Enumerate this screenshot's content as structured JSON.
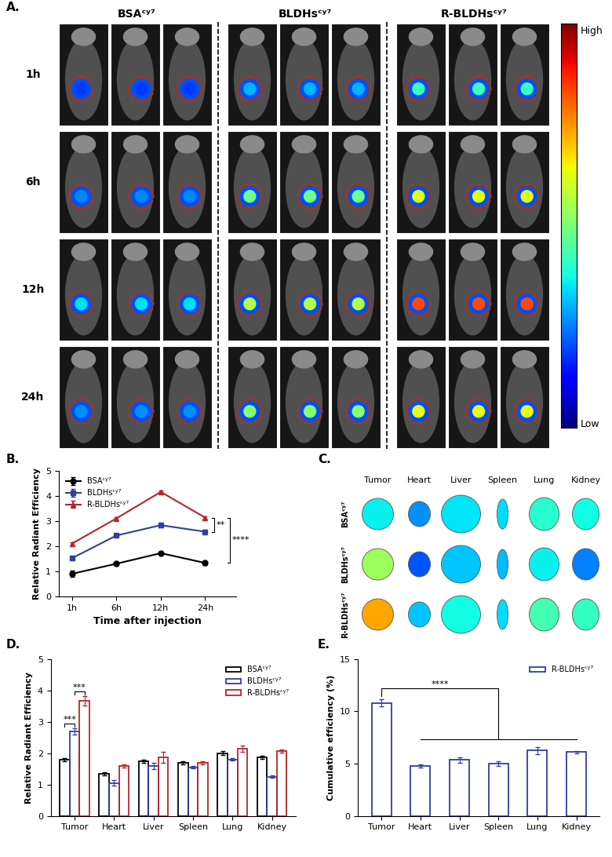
{
  "imaging": {
    "title": "A.",
    "groups": [
      "BSAᶜʸ⁷",
      "BLDHsᶜʸ⁷",
      "R-BLDHsᶜʸ⁷"
    ],
    "times": [
      "1h",
      "6h",
      "12h",
      "24h"
    ],
    "mice_per_group": 3,
    "colorbar": {
      "high": "High",
      "low": "Low"
    }
  },
  "ex_vivo": {
    "title": "C.",
    "groups": [
      "BSAᶜʸ⁷",
      "BLDHsᶜʸ⁷",
      "R-BLDHsᶜʸ⁷"
    ],
    "organs": [
      "Tumor",
      "Heart",
      "Liver",
      "Spleen",
      "Lung",
      "Kidney"
    ]
  },
  "chart_data": [
    {
      "type": "line",
      "title": "B.",
      "x_label": "Time after injection",
      "y_label": "Relative Radiant Efficiency",
      "categories": [
        "1h",
        "6h",
        "12h",
        "24h"
      ],
      "series": [
        {
          "name": "BSAᶜʸ⁷",
          "color": "#000000",
          "marker": "circle",
          "values": [
            0.9,
            1.3,
            1.72,
            1.33
          ],
          "errors": [
            0.12,
            0.05,
            0.05,
            0.08
          ]
        },
        {
          "name": "BLDHsᶜʸ⁷",
          "color": "#2e3f9e",
          "marker": "square",
          "values": [
            1.52,
            2.42,
            2.83,
            2.57
          ],
          "errors": [
            0.05,
            0.05,
            0.1,
            0.08
          ]
        },
        {
          "name": "R-BLDHsᶜʸ⁷",
          "color": "#b5262b",
          "marker": "triangle",
          "values": [
            2.1,
            3.1,
            4.15,
            3.13
          ],
          "errors": [
            0.06,
            0.05,
            0.07,
            0.05
          ]
        }
      ],
      "ylim": [
        0,
        5
      ],
      "yticks": [
        0,
        1,
        2,
        3,
        4,
        5
      ],
      "legend": "upper left",
      "annotations": [
        {
          "text": "**",
          "at": "24h",
          "between": [
            "BLDHsᶜʸ⁷",
            "R-BLDHsᶜʸ⁷"
          ]
        },
        {
          "text": "****",
          "at": "24h",
          "between": [
            "BSAᶜʸ⁷",
            "R-BLDHsᶜʸ⁷"
          ]
        }
      ]
    },
    {
      "type": "bar",
      "title": "D.",
      "y_label": "Relative Radiant Efficiency",
      "categories": [
        "Tumor",
        "Heart",
        "Liver",
        "Spleen",
        "Lung",
        "Kidney"
      ],
      "series": [
        {
          "name": "BSAᶜʸ⁷",
          "color": "#000000",
          "values": [
            1.8,
            1.33,
            1.75,
            1.7,
            2.0,
            1.87
          ],
          "errors": [
            0.05,
            0.05,
            0.05,
            0.05,
            0.07,
            0.05
          ]
        },
        {
          "name": "BLDHsᶜʸ⁷",
          "color": "#2e3f9e",
          "values": [
            2.7,
            1.05,
            1.6,
            1.55,
            1.8,
            1.25
          ],
          "errors": [
            0.1,
            0.08,
            0.1,
            0.03,
            0.03,
            0.03
          ]
        },
        {
          "name": "R-BLDHsᶜʸ⁷",
          "color": "#b5262b",
          "values": [
            3.67,
            1.6,
            1.87,
            1.7,
            2.15,
            2.07
          ],
          "errors": [
            0.15,
            0.05,
            0.18,
            0.05,
            0.1,
            0.05
          ]
        }
      ],
      "ylim": [
        0,
        5
      ],
      "yticks": [
        0,
        1,
        2,
        3,
        4,
        5
      ],
      "legend": "upper right",
      "annotations": [
        {
          "text": "***",
          "at": "Tumor",
          "between": [
            "BSAᶜʸ⁷",
            "BLDHsᶜʸ⁷"
          ]
        },
        {
          "text": "***",
          "at": "Tumor",
          "between": [
            "BLDHsᶜʸ⁷",
            "R-BLDHsᶜʸ⁷"
          ]
        }
      ]
    },
    {
      "type": "bar",
      "title": "E.",
      "y_label": "Cumulative efficiency (%)",
      "categories": [
        "Tumor",
        "Heart",
        "Liver",
        "Spleen",
        "Lung",
        "Kidney"
      ],
      "series": [
        {
          "name": "R-BLDHsᶜʸ⁷",
          "color": "#2e3f9e",
          "values": [
            10.8,
            4.75,
            5.35,
            5.0,
            6.25,
            6.1
          ],
          "errors": [
            0.35,
            0.15,
            0.25,
            0.2,
            0.35,
            0.1
          ]
        }
      ],
      "ylim": [
        0,
        15
      ],
      "yticks": [
        0,
        5,
        10,
        15
      ],
      "legend": "upper right",
      "annotations": [
        {
          "text": "****",
          "from": "Tumor",
          "to": [
            "Heart",
            "Liver",
            "Spleen",
            "Lung",
            "Kidney"
          ]
        }
      ]
    }
  ]
}
